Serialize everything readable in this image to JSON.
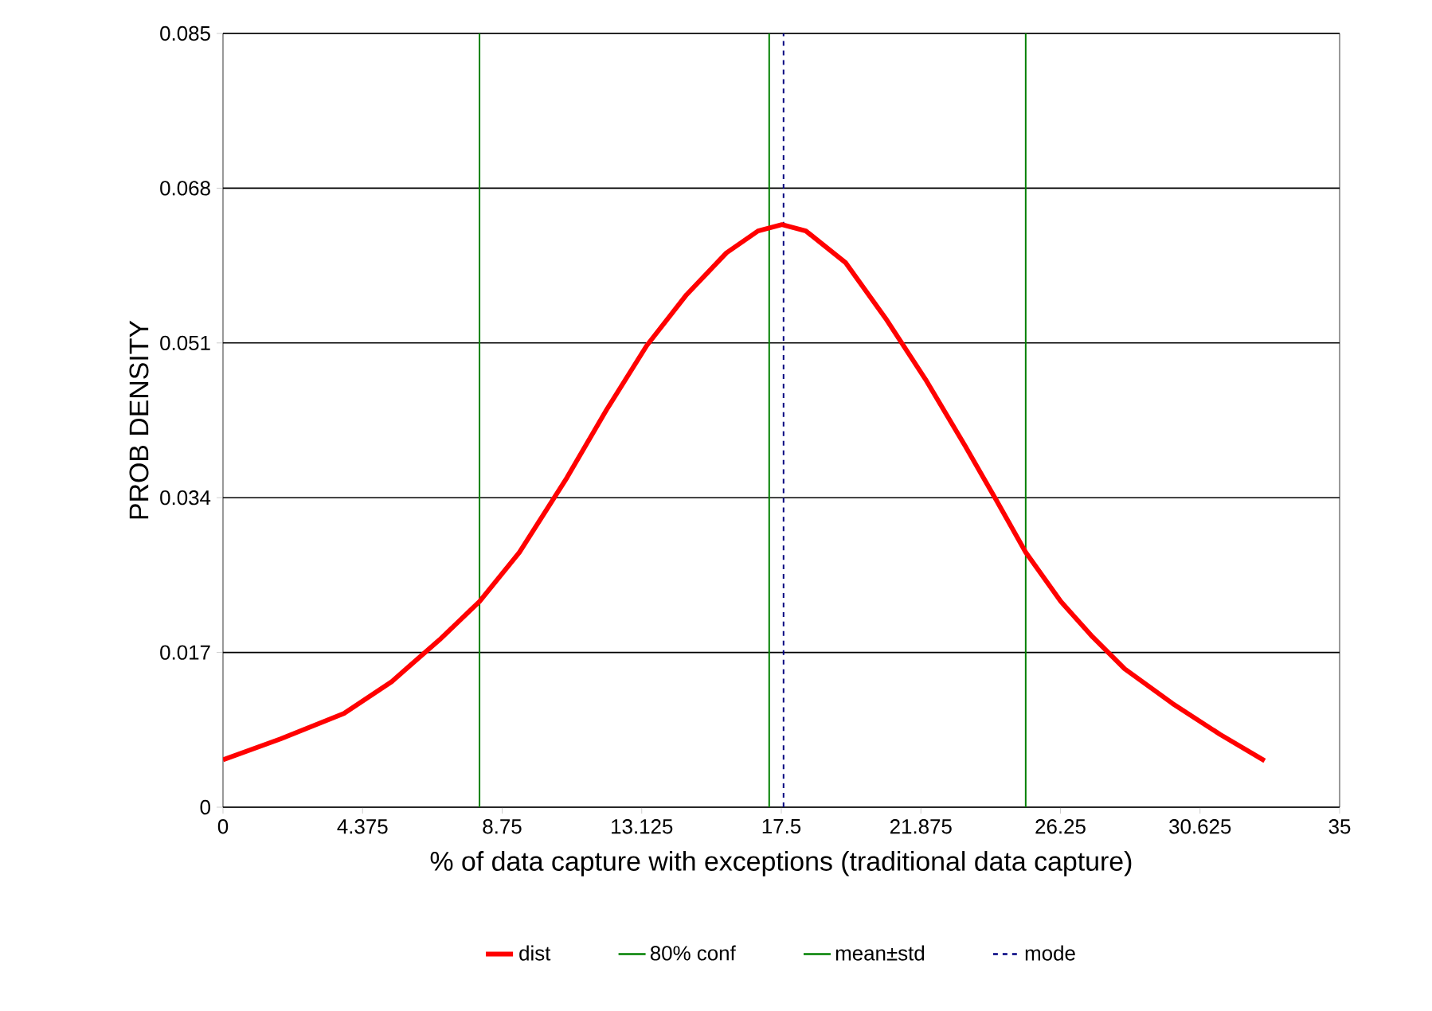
{
  "chart_data": {
    "type": "line",
    "xlabel": "% of data capture with exceptions (traditional data capture)",
    "ylabel": "PROB DENSITY",
    "x": [
      0,
      1.8,
      3.79,
      5.29,
      6.79,
      8.04,
      9.29,
      10.78,
      12.03,
      13.28,
      14.53,
      15.78,
      16.77,
      17.52,
      18.27,
      19.52,
      20.77,
      22.02,
      23.26,
      24.26,
      25.16,
      26.26,
      27.26,
      28.26,
      29.76,
      31.25,
      32.65
    ],
    "series": [
      {
        "name": "dist",
        "color": "#ff0000",
        "values": [
          0.0052,
          0.0075,
          0.0103,
          0.0138,
          0.0184,
          0.0226,
          0.028,
          0.0362,
          0.0437,
          0.0507,
          0.0563,
          0.0609,
          0.0633,
          0.064,
          0.0633,
          0.0598,
          0.0537,
          0.047,
          0.0397,
          0.0336,
          0.028,
          0.0226,
          0.0187,
          0.0152,
          0.0114,
          0.008,
          0.0051
        ]
      }
    ],
    "xlim": [
      0,
      35
    ],
    "ylim": [
      0,
      0.085
    ],
    "xticks": [
      0,
      4.375,
      8.75,
      13.125,
      17.5,
      21.875,
      26.25,
      30.625,
      35
    ],
    "yticks": [
      0,
      0.017,
      0.034,
      0.051,
      0.068,
      0.085
    ],
    "ref_lines": [
      {
        "axis": "x",
        "value": 8.04,
        "label": "80% conf",
        "color": "#008000",
        "line_style": "solid"
      },
      {
        "axis": "x",
        "value": 25.16,
        "color": "#008000",
        "line_style": "solid"
      },
      {
        "axis": "x",
        "value": 17.12,
        "label": "mean±std",
        "color": "#008000",
        "line_style": "solid"
      },
      {
        "axis": "x",
        "value": 17.57,
        "label": "mode",
        "color": "#000080",
        "line_style": "dashed"
      }
    ],
    "grid": "y",
    "legend": "bottom",
    "marker": "none",
    "line_style": "solid"
  }
}
